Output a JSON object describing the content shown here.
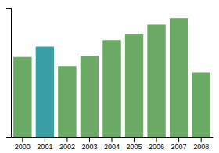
{
  "chart_data": {
    "type": "bar",
    "categories": [
      "2000",
      "2001",
      "2002",
      "2003",
      "2004",
      "2005",
      "2006",
      "2007",
      "2008"
    ],
    "values": [
      62,
      70,
      55,
      63,
      75,
      80,
      87,
      92,
      50
    ],
    "colors": [
      "#6aaa64",
      "#3a9ea5",
      "#6aaa64",
      "#6aaa64",
      "#6aaa64",
      "#6aaa64",
      "#6aaa64",
      "#6aaa64",
      "#6aaa64"
    ],
    "ylim": [
      0,
      100
    ],
    "grid": false,
    "tick_labels": "x"
  }
}
